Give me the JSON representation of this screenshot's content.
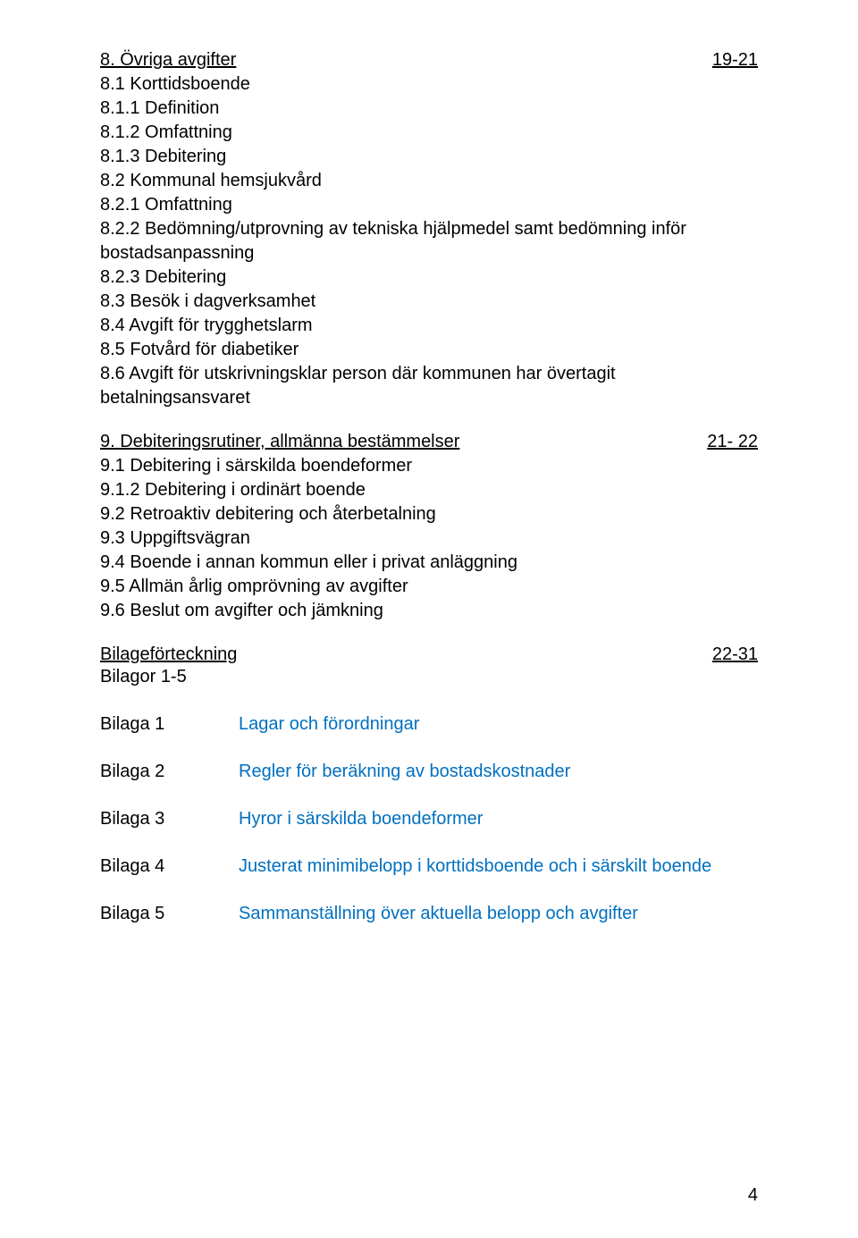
{
  "sections": [
    {
      "title": "8. Övriga avgifter",
      "pages": "19-21",
      "items": [
        "8.1 Korttidsboende",
        "8.1.1 Definition",
        "8.1.2 Omfattning",
        "8.1.3 Debitering",
        "8.2 Kommunal hemsjukvård",
        "8.2.1 Omfattning",
        "8.2.2 Bedömning/utprovning av tekniska hjälpmedel samt bedömning inför bostadsanpassning",
        "8.2.3 Debitering",
        "8.3 Besök i dagverksamhet",
        "8.4 Avgift för trygghetslarm",
        "8.5 Fotvård för diabetiker",
        "8.6 Avgift för utskrivningsklar person där kommunen har övertagit betalningsansvaret"
      ]
    },
    {
      "title": "9. Debiteringsrutiner, allmänna bestämmelser",
      "pages": "21- 22",
      "items": [
        "9.1 Debitering i särskilda boendeformer",
        "9.1.2 Debitering i ordinärt boende",
        "9.2 Retroaktiv debitering och återbetalning",
        "9.3 Uppgiftsvägran",
        "9.4 Boende i annan kommun eller i privat anläggning",
        "9.5 Allmän årlig omprövning av avgifter",
        "9.6 Beslut om avgifter och jämkning"
      ]
    }
  ],
  "appendix_heading": {
    "title": "Bilageförteckning",
    "pages": "22-31",
    "subtitle": "Bilagor 1-5"
  },
  "bilagor": [
    {
      "label": "Bilaga 1",
      "desc": "Lagar och förordningar"
    },
    {
      "label": "Bilaga 2",
      "desc": "Regler för beräkning av bostadskostnader"
    },
    {
      "label": "Bilaga 3",
      "desc": "Hyror i särskilda boendeformer"
    },
    {
      "label": "Bilaga 4",
      "desc": "Justerat minimibelopp i korttidsboende och i särskilt boende"
    },
    {
      "label": "Bilaga 5",
      "desc": "Sammanställning över aktuella belopp och avgifter"
    }
  ],
  "page_number": "4",
  "colors": {
    "link": "#0070c0",
    "text": "#000000",
    "background": "#ffffff"
  }
}
